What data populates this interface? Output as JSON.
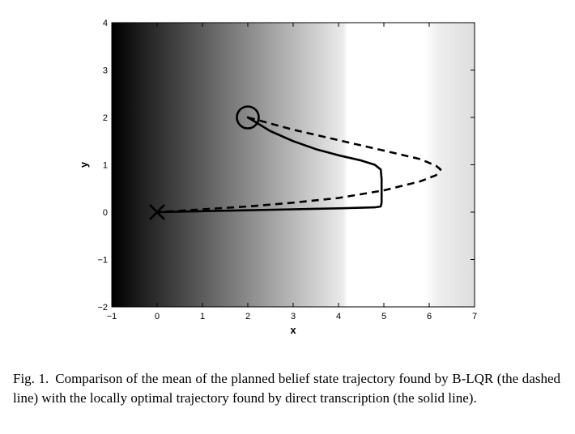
{
  "caption": {
    "label": "Fig. 1.",
    "text": "Comparison of the mean of the planned belief state trajectory found by B-LQR (the dashed line) with the locally optimal trajectory found by direct transcription (the solid line)."
  },
  "chart_data": {
    "type": "line",
    "xlabel": "x",
    "ylabel": "y",
    "xlim": [
      -1,
      7
    ],
    "ylim": [
      -2,
      4
    ],
    "xticks": [
      "−1",
      "0",
      "1",
      "2",
      "3",
      "4",
      "5",
      "6",
      "7"
    ],
    "yticks": [
      "−2",
      "−1",
      "0",
      "1",
      "2",
      "3",
      "4"
    ],
    "background": {
      "type": "horizontal-gradient",
      "description": "grayscale from black at x=-1 to white around x=4.1, darkening slightly again past x=6",
      "stops": [
        {
          "x": -1.0,
          "gray": 0
        },
        {
          "x": 0.0,
          "gray": 46
        },
        {
          "x": 1.0,
          "gray": 92
        },
        {
          "x": 2.0,
          "gray": 138
        },
        {
          "x": 3.0,
          "gray": 184
        },
        {
          "x": 4.1,
          "gray": 235
        },
        {
          "x": 4.2,
          "gray": 255
        },
        {
          "x": 5.9,
          "gray": 255
        },
        {
          "x": 6.2,
          "gray": 238
        },
        {
          "x": 7.0,
          "gray": 222
        }
      ]
    },
    "series": [
      {
        "style": "dashed",
        "x": [
          2.0,
          3.0,
          4.0,
          5.0,
          5.8,
          6.15,
          6.25,
          6.15,
          5.8,
          5.0,
          4.0,
          3.0,
          2.0,
          1.0,
          0.0
        ],
        "y": [
          2.0,
          1.74,
          1.52,
          1.3,
          1.12,
          0.98,
          0.9,
          0.78,
          0.65,
          0.46,
          0.3,
          0.2,
          0.12,
          0.06,
          0.0
        ]
      },
      {
        "style": "solid",
        "x": [
          2.0,
          2.5,
          3.0,
          3.5,
          4.0,
          4.5,
          4.8,
          4.93,
          4.95,
          4.95,
          4.95,
          4.93,
          4.8,
          4.0,
          3.0,
          2.0,
          1.0,
          0.0
        ],
        "y": [
          2.0,
          1.71,
          1.5,
          1.33,
          1.2,
          1.09,
          1.0,
          0.9,
          0.7,
          0.4,
          0.2,
          0.12,
          0.1,
          0.08,
          0.06,
          0.04,
          0.02,
          0.0
        ]
      }
    ],
    "markers": [
      {
        "shape": "circle",
        "x": 2.0,
        "y": 2.0
      },
      {
        "shape": "x",
        "x": 0.0,
        "y": 0.0
      }
    ]
  }
}
